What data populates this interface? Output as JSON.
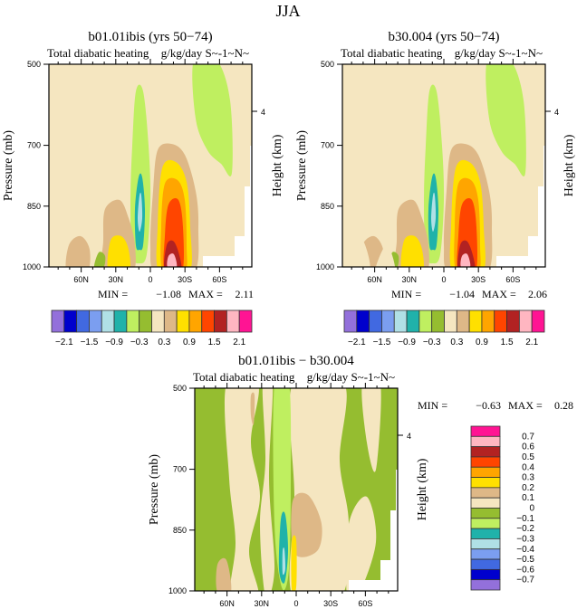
{
  "chart_data": [
    {
      "type": "heatmap",
      "title": "b01.01ibis (yrs 50−74)",
      "subtitle_left": "Total diabatic heating",
      "subtitle_right": "g/kg/day S~-1~N~",
      "xlabel": "",
      "ylabel": "Pressure (mb)",
      "ylabel_right": "Height (km)",
      "x_ticks": [
        "60N",
        "30N",
        "0",
        "30S",
        "60S"
      ],
      "y_ticks": [
        "500",
        "700",
        "850",
        "1000"
      ],
      "y_right_ticks": [
        "4"
      ],
      "ylim": [
        1000,
        500
      ],
      "min_label": "MIN =",
      "min_value": "−1.08",
      "max_label": "MAX =",
      "max_value": "2.11",
      "colorbar": {
        "orientation": "horizontal",
        "labels": [
          "−2.1",
          "−1.5",
          "−0.9",
          "−0.3",
          "0.3",
          "0.9",
          "1.5",
          "2.1"
        ],
        "levels": [
          -2.1,
          -1.8,
          -1.5,
          -1.2,
          -0.9,
          -0.6,
          -0.3,
          0,
          0.3,
          0.6,
          0.9,
          1.2,
          1.5,
          1.8,
          2.1
        ]
      }
    },
    {
      "type": "heatmap",
      "title": "b30.004 (yrs 50−74)",
      "subtitle_left": "Total diabatic heating",
      "subtitle_right": "g/kg/day S~-1~N~",
      "xlabel": "",
      "ylabel": "Pressure (mb)",
      "ylabel_right": "Height (km)",
      "x_ticks": [
        "60N",
        "30N",
        "0",
        "30S",
        "60S"
      ],
      "y_ticks": [
        "500",
        "700",
        "850",
        "1000"
      ],
      "y_right_ticks": [
        "4"
      ],
      "ylim": [
        1000,
        500
      ],
      "min_label": "MIN =",
      "min_value": "−1.04",
      "max_label": "MAX =",
      "max_value": "2.06",
      "colorbar": {
        "orientation": "horizontal",
        "labels": [
          "−2.1",
          "−1.5",
          "−0.9",
          "−0.3",
          "0.3",
          "0.9",
          "1.5",
          "2.1"
        ],
        "levels": [
          -2.1,
          -1.8,
          -1.5,
          -1.2,
          -0.9,
          -0.6,
          -0.3,
          0,
          0.3,
          0.6,
          0.9,
          1.2,
          1.5,
          1.8,
          2.1
        ]
      }
    },
    {
      "type": "heatmap",
      "title": "b01.01ibis − b30.004",
      "subtitle_left": "Total diabatic heating",
      "subtitle_right": "g/kg/day S~-1~N~",
      "xlabel": "",
      "ylabel": "Pressure (mb)",
      "ylabel_right": "Height (km)",
      "x_ticks": [
        "60N",
        "30N",
        "0",
        "30S",
        "60S"
      ],
      "y_ticks": [
        "500",
        "700",
        "850",
        "1000"
      ],
      "y_right_ticks": [
        "4"
      ],
      "ylim": [
        1000,
        500
      ],
      "min_label": "MIN =",
      "min_value": "−0.63",
      "max_label": "MAX =",
      "max_value": "0.28",
      "colorbar": {
        "orientation": "vertical",
        "labels": [
          "0.7",
          "0.6",
          "0.5",
          "0.4",
          "0.3",
          "0.2",
          "0.1",
          "0",
          "−0.1",
          "−0.2",
          "−0.3",
          "−0.4",
          "−0.5",
          "−0.6",
          "−0.7"
        ],
        "levels": [
          0.7,
          0.6,
          0.5,
          0.4,
          0.3,
          0.2,
          0.1,
          0,
          -0.1,
          -0.2,
          -0.3,
          -0.4,
          -0.5,
          -0.6,
          -0.7
        ]
      }
    }
  ],
  "figure_title": "JJA",
  "palette": [
    "#9370DB",
    "#0000CD",
    "#4169E1",
    "#7B9EF0",
    "#B0E0E6",
    "#20B2AA",
    "#BFEF60",
    "#95BD30",
    "#F5E6C0",
    "#DEB887",
    "#FFE000",
    "#FFA500",
    "#FF4500",
    "#B22222",
    "#FFB6C1",
    "#FF1493"
  ],
  "missing_color": "#FFFFFF"
}
